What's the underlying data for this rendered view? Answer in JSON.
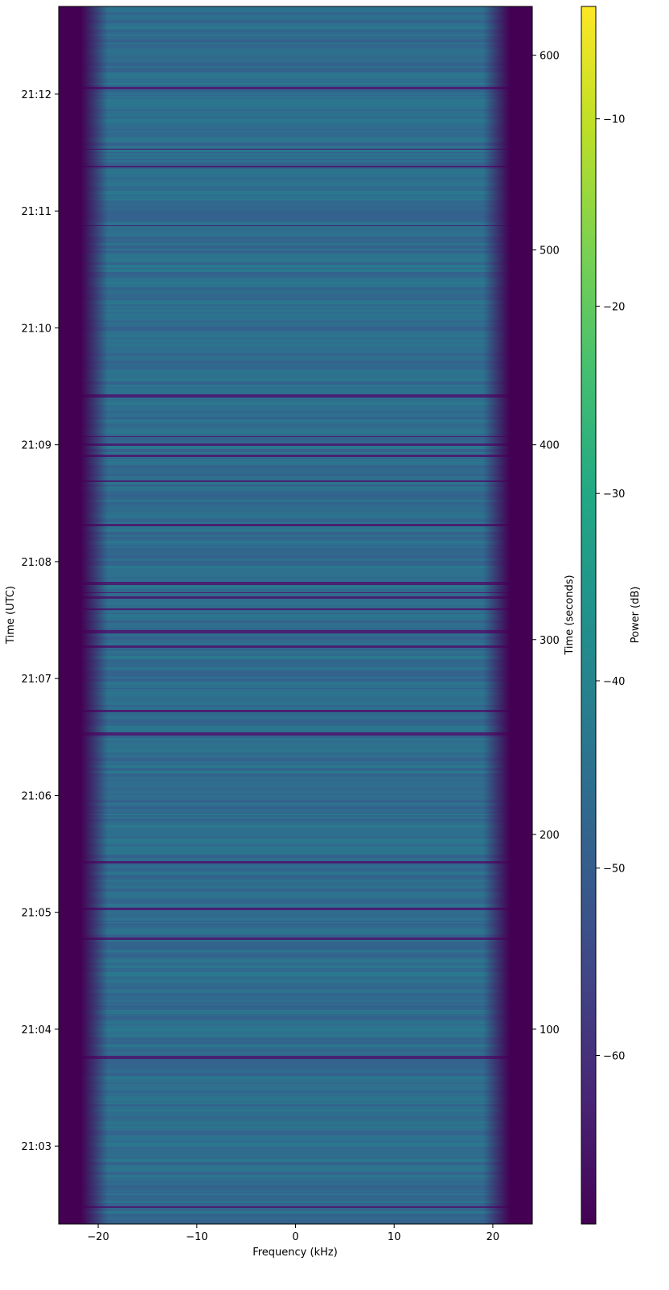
{
  "chart_data": {
    "type": "heatmap",
    "title": "",
    "xlabel": "Frequency (kHz)",
    "ylabel_left": "Time (UTC)",
    "ylabel_right": "Time (seconds)",
    "colorbar_label": "Power (dB)",
    "colormap": "viridis",
    "xlim": [
      -24,
      24
    ],
    "x_ticks": [
      {
        "value": -20,
        "label": "−20"
      },
      {
        "value": -10,
        "label": "−10"
      },
      {
        "value": 0,
        "label": "0"
      },
      {
        "value": 10,
        "label": "10"
      },
      {
        "value": 20,
        "label": "20"
      }
    ],
    "ylim_seconds": [
      0,
      625
    ],
    "y_right_ticks": [
      {
        "value": 100,
        "label": "100"
      },
      {
        "value": 200,
        "label": "200"
      },
      {
        "value": 300,
        "label": "300"
      },
      {
        "value": 400,
        "label": "400"
      },
      {
        "value": 500,
        "label": "500"
      },
      {
        "value": 600,
        "label": "600"
      }
    ],
    "y_left_ticks": [
      {
        "value": 40,
        "label": "21:03"
      },
      {
        "value": 100,
        "label": "21:04"
      },
      {
        "value": 160,
        "label": "21:05"
      },
      {
        "value": 220,
        "label": "21:06"
      },
      {
        "value": 280,
        "label": "21:07"
      },
      {
        "value": 340,
        "label": "21:08"
      },
      {
        "value": 400,
        "label": "21:09"
      },
      {
        "value": 460,
        "label": "21:10"
      },
      {
        "value": 520,
        "label": "21:11"
      },
      {
        "value": 580,
        "label": "21:12"
      }
    ],
    "colorbar_range": [
      -69,
      -4
    ],
    "colorbar_ticks": [
      {
        "value": -10,
        "label": "−10"
      },
      {
        "value": -20,
        "label": "−20"
      },
      {
        "value": -30,
        "label": "−30"
      },
      {
        "value": -40,
        "label": "−40"
      },
      {
        "value": -50,
        "label": "−50"
      },
      {
        "value": -60,
        "label": "−60"
      }
    ],
    "passband_khz": [
      -20,
      20
    ],
    "noise_floor_db": -69,
    "passband_power_db": [
      -54,
      -40
    ]
  }
}
